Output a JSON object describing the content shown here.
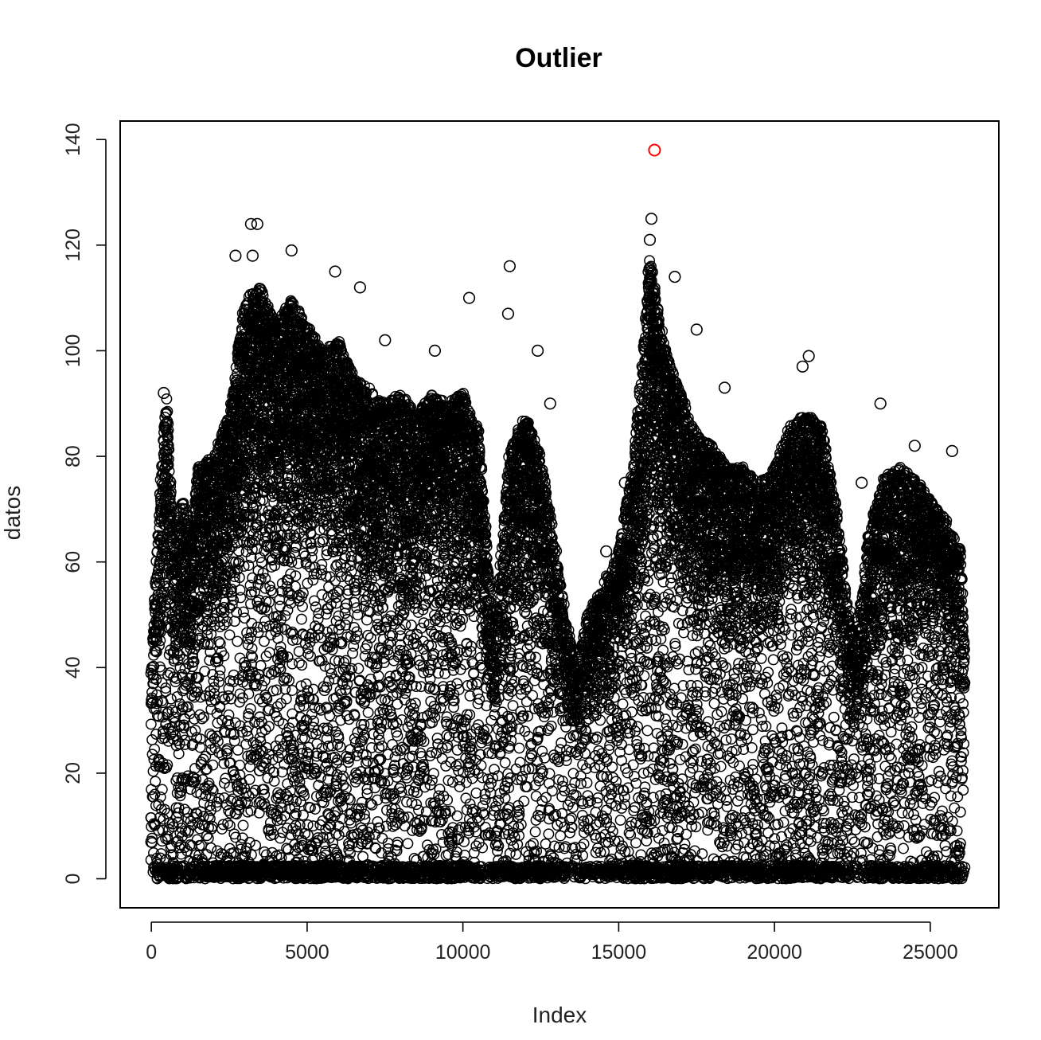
{
  "chart_data": {
    "type": "scatter",
    "title": "Outlier",
    "xlabel": "Index",
    "ylabel": "datos",
    "xlim": [
      -1000,
      27200
    ],
    "ylim": [
      -5.5,
      143.5
    ],
    "xticks": [
      0,
      5000,
      10000,
      15000,
      20000,
      25000
    ],
    "yticks": [
      0,
      20,
      40,
      60,
      80,
      100,
      120,
      140
    ],
    "grid": false,
    "legend": "none",
    "point_color": "#000000",
    "outlier_color": "#ff0000",
    "density_envelope": {
      "x": [
        0,
        300,
        500,
        700,
        1000,
        1300,
        1500,
        2000,
        2500,
        3000,
        3500,
        4000,
        4500,
        5000,
        5500,
        6000,
        6500,
        7000,
        7500,
        8000,
        8500,
        9000,
        9500,
        10000,
        10500,
        11000,
        11500,
        12000,
        12500,
        13000,
        13300,
        13600,
        14000,
        14500,
        15000,
        15500,
        16000,
        16500,
        17000,
        17500,
        18000,
        18500,
        19000,
        19500,
        20000,
        20500,
        21000,
        21500,
        22000,
        22300,
        22600,
        23000,
        23500,
        24000,
        24500,
        25000,
        25500,
        26000,
        26100
      ],
      "upper": [
        40,
        76,
        92,
        65,
        72,
        66,
        78,
        80,
        88,
        110,
        112,
        105,
        110,
        105,
        100,
        102,
        95,
        93,
        90,
        92,
        88,
        92,
        90,
        92,
        85,
        45,
        82,
        88,
        80,
        62,
        50,
        40,
        50,
        56,
        62,
        80,
        118,
        100,
        92,
        84,
        82,
        78,
        78,
        75,
        78,
        86,
        88,
        86,
        70,
        55,
        45,
        65,
        76,
        78,
        76,
        72,
        68,
        62,
        45
      ]
    },
    "highlighted_points": [
      {
        "x": 16150,
        "y": 138
      }
    ],
    "labeled_points": [
      {
        "x": 400,
        "y": 92
      },
      {
        "x": 450,
        "y": 86
      },
      {
        "x": 3200,
        "y": 124
      },
      {
        "x": 3400,
        "y": 124
      },
      {
        "x": 4500,
        "y": 119
      },
      {
        "x": 2700,
        "y": 118
      },
      {
        "x": 3250,
        "y": 118
      },
      {
        "x": 5900,
        "y": 115
      },
      {
        "x": 11500,
        "y": 116
      },
      {
        "x": 6700,
        "y": 112
      },
      {
        "x": 10200,
        "y": 110
      },
      {
        "x": 11450,
        "y": 107
      },
      {
        "x": 12400,
        "y": 100
      },
      {
        "x": 9100,
        "y": 100
      },
      {
        "x": 7500,
        "y": 102
      },
      {
        "x": 16050,
        "y": 125
      },
      {
        "x": 16000,
        "y": 121
      },
      {
        "x": 16800,
        "y": 114
      },
      {
        "x": 17500,
        "y": 104
      },
      {
        "x": 18400,
        "y": 93
      },
      {
        "x": 21100,
        "y": 99
      },
      {
        "x": 20900,
        "y": 97
      },
      {
        "x": 23400,
        "y": 90
      },
      {
        "x": 24500,
        "y": 82
      },
      {
        "x": 25700,
        "y": 81
      },
      {
        "x": 22800,
        "y": 75
      },
      {
        "x": 15200,
        "y": 75
      },
      {
        "x": 12800,
        "y": 90
      },
      {
        "x": 14600,
        "y": 62
      },
      {
        "x": 13300,
        "y": 48
      },
      {
        "x": 16900,
        "y": 9
      },
      {
        "x": 0,
        "y": 7
      }
    ]
  }
}
